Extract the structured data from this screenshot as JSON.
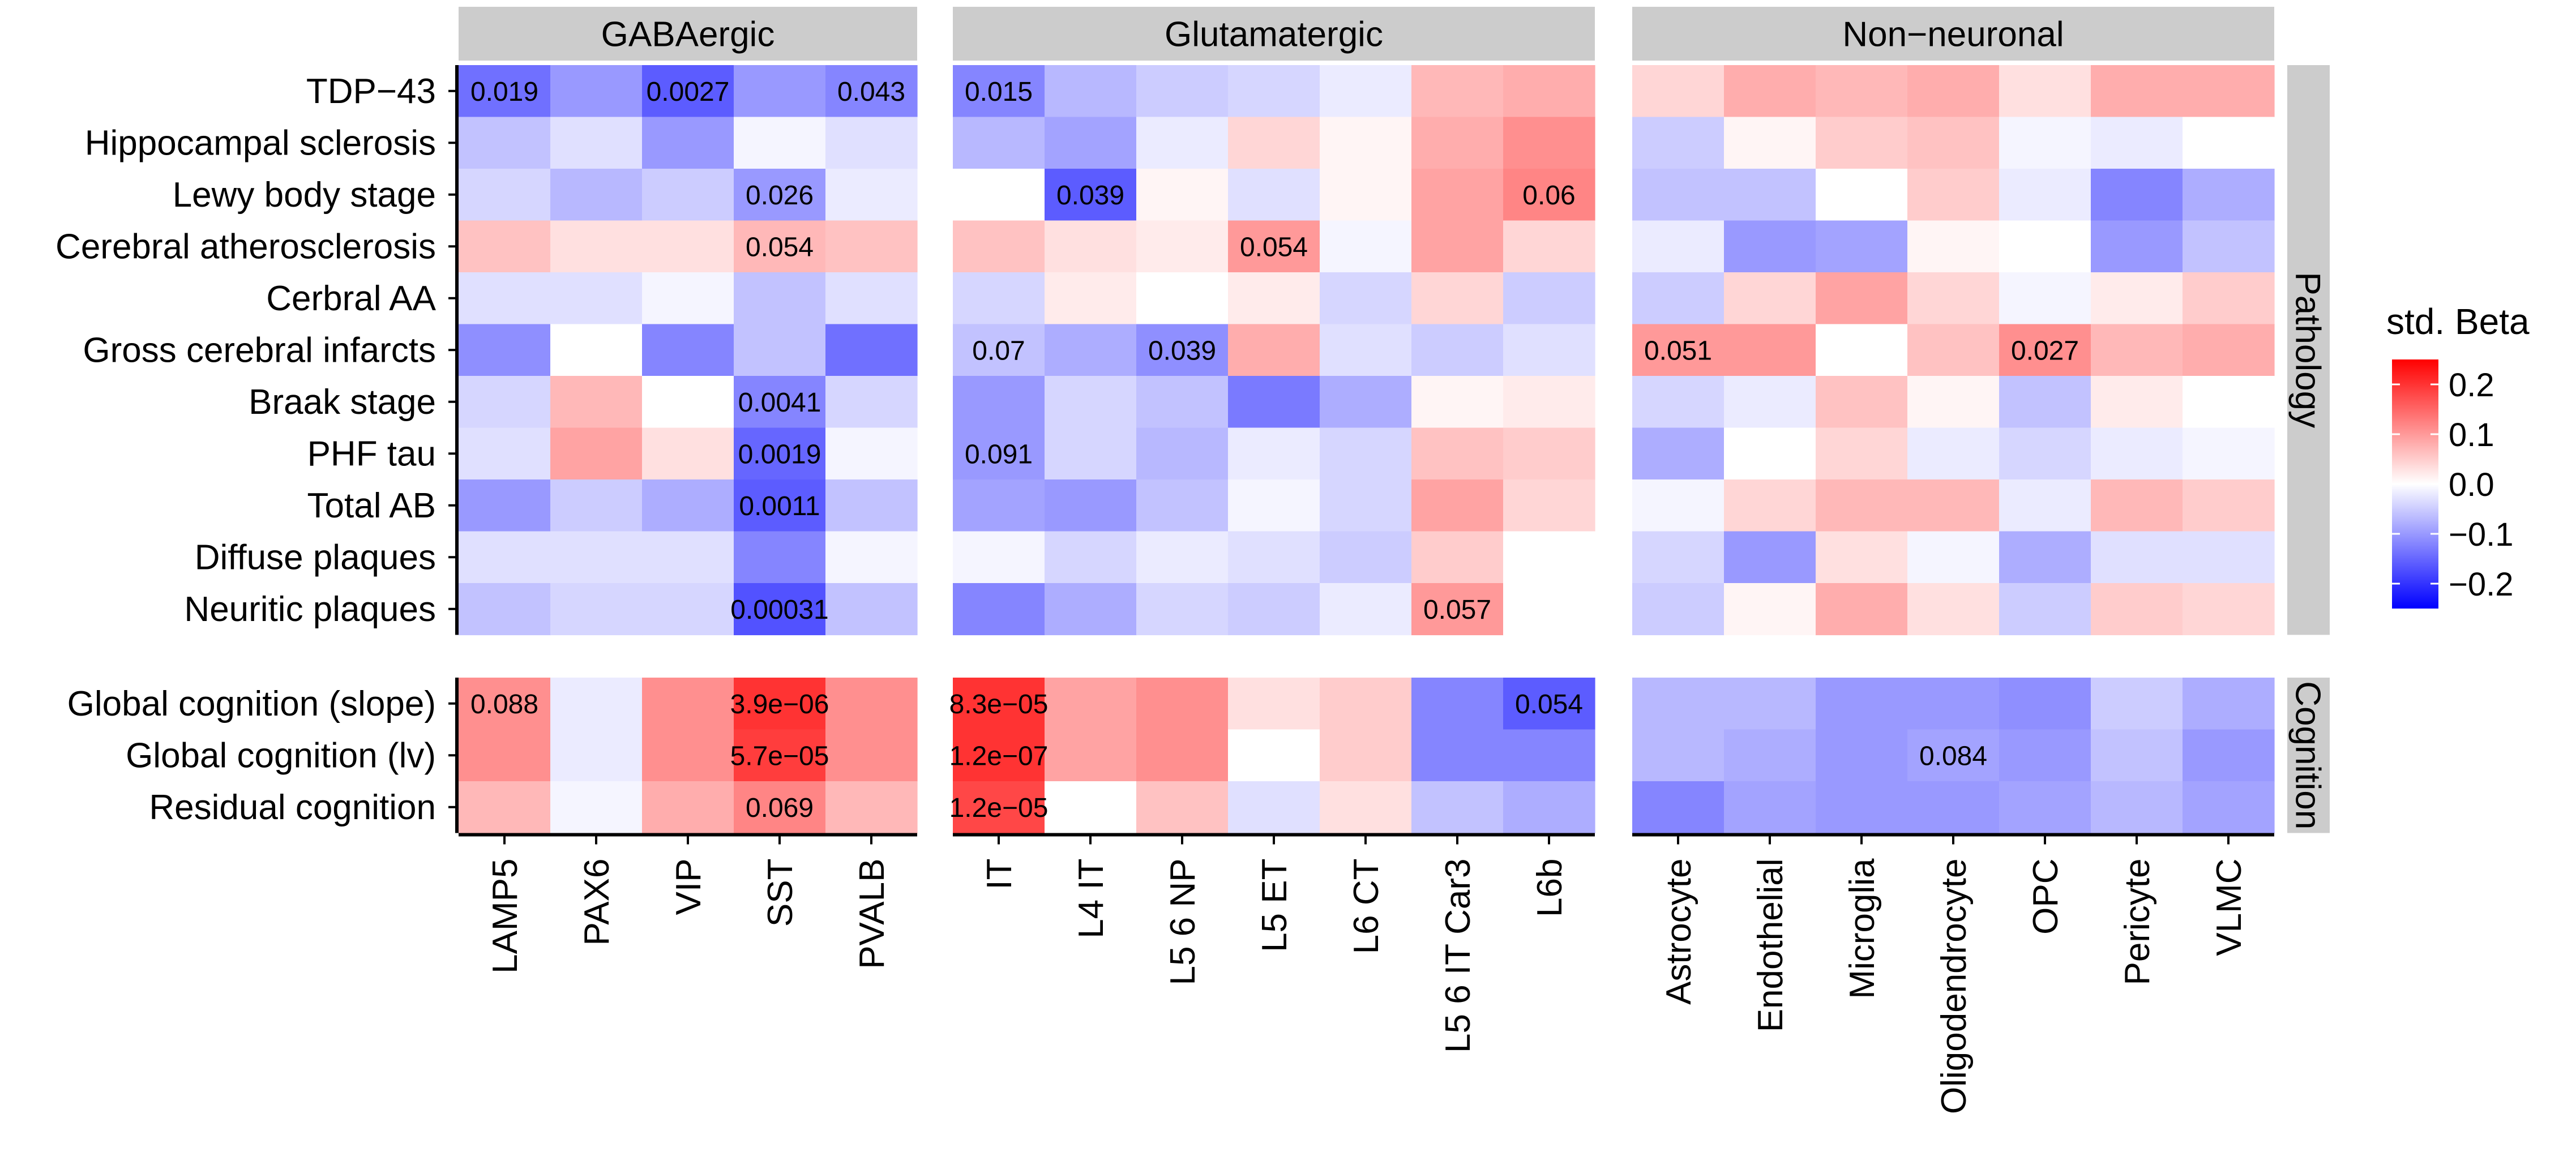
{
  "colors": {
    "negative_extreme": "#0000ff",
    "zero": "#ffffff",
    "positive_extreme": "#ff0000",
    "strip": "#cccccc",
    "axis": "#000000"
  },
  "chart_data": {
    "type": "heatmap",
    "title": "",
    "xlabel": "",
    "ylabel": "",
    "color_scale": {
      "min": -0.25,
      "max": 0.25,
      "mid": 0
    },
    "legend": {
      "title": "std. Beta",
      "ticks": [
        0.2,
        0.1,
        0.0,
        -0.1,
        -0.2
      ],
      "tick_labels": [
        "0.2",
        "0.1",
        "0.0",
        "−0.1",
        "−0.2"
      ],
      "position": "right"
    },
    "column_groups": [
      {
        "name": "GABAergic",
        "columns": [
          "LAMP5",
          "PAX6",
          "VIP",
          "SST",
          "PVALB"
        ]
      },
      {
        "name": "Glutamatergic",
        "columns": [
          "IT",
          "L4 IT",
          "L5 6 NP",
          "L5 ET",
          "L6 CT",
          "L5 6 IT Car3",
          "L6b"
        ]
      },
      {
        "name": "Non−neuronal",
        "columns": [
          "Astrocyte",
          "Endothelial",
          "Microglia",
          "Oligodendrocyte",
          "OPC",
          "Pericyte",
          "VLMC"
        ]
      }
    ],
    "row_groups": [
      {
        "name": "Pathology",
        "rows": [
          "TDP−43",
          "Hippocampal sclerosis",
          "Lewy body stage",
          "Cerebral atherosclerosis",
          "Cerbral AA",
          "Gross cerebral infarcts",
          "Braak stage",
          "PHF tau",
          "Total AB",
          "Diffuse plaques",
          "Neuritic plaques"
        ]
      },
      {
        "name": "Cognition",
        "rows": [
          "Global cognition (slope)",
          "Global cognition (lv)",
          "Residual cognition"
        ]
      }
    ],
    "values": [
      [
        [
          [
            -0.14,
            -0.1,
            -0.16,
            -0.1,
            -0.12
          ],
          [
            -0.12,
            -0.07,
            -0.05,
            -0.04,
            -0.02,
            0.07,
            0.08
          ]
        ],
        [
          [
            -0.06,
            -0.03,
            -0.1,
            -0.01,
            -0.03
          ],
          [
            -0.07,
            -0.09,
            -0.02,
            0.04,
            0.01,
            0.08,
            0.11
          ]
        ],
        [
          [
            -0.04,
            -0.07,
            -0.05,
            -0.1,
            -0.02
          ],
          [
            0.0,
            -0.16,
            0.01,
            -0.03,
            0.01,
            0.09,
            0.12
          ]
        ],
        [
          [
            0.06,
            0.03,
            0.03,
            0.07,
            0.06
          ],
          [
            0.06,
            0.03,
            0.02,
            0.1,
            -0.01,
            0.09,
            0.04
          ]
        ],
        [
          [
            -0.03,
            -0.03,
            -0.01,
            -0.06,
            -0.03
          ],
          [
            -0.04,
            0.02,
            0.0,
            0.02,
            -0.04,
            0.04,
            -0.05
          ]
        ],
        [
          [
            -0.11,
            0.0,
            -0.12,
            -0.06,
            -0.14
          ],
          [
            -0.06,
            -0.08,
            -0.11,
            0.08,
            -0.03,
            -0.05,
            -0.03
          ]
        ],
        [
          [
            -0.04,
            0.07,
            0.0,
            -0.12,
            -0.04
          ],
          [
            -0.1,
            -0.04,
            -0.06,
            -0.13,
            -0.08,
            0.01,
            0.02
          ]
        ],
        [
          [
            -0.03,
            0.09,
            0.03,
            -0.15,
            -0.01
          ],
          [
            -0.1,
            -0.04,
            -0.07,
            -0.02,
            -0.04,
            0.06,
            0.05
          ]
        ],
        [
          [
            -0.1,
            -0.05,
            -0.08,
            -0.16,
            -0.06
          ],
          [
            -0.09,
            -0.1,
            -0.06,
            -0.01,
            -0.04,
            0.09,
            0.04
          ]
        ],
        [
          [
            -0.03,
            -0.03,
            -0.03,
            -0.12,
            -0.01
          ],
          [
            -0.01,
            -0.04,
            -0.02,
            -0.03,
            -0.05,
            0.05,
            0.0
          ]
        ],
        [
          [
            -0.06,
            -0.04,
            -0.04,
            -0.17,
            -0.06
          ],
          [
            -0.12,
            -0.08,
            -0.04,
            -0.05,
            -0.02,
            0.1,
            0.0
          ]
        ]
      ],
      [
        [
          [
            0.11,
            -0.02,
            0.11,
            0.2,
            0.11
          ],
          [
            0.2,
            0.09,
            0.11,
            0.03,
            0.05,
            -0.12,
            -0.16
          ]
        ],
        [
          [
            0.11,
            -0.02,
            0.11,
            0.19,
            0.11
          ],
          [
            0.2,
            0.09,
            0.11,
            0.0,
            0.05,
            -0.12,
            -0.12
          ]
        ],
        [
          [
            0.07,
            -0.01,
            0.08,
            0.12,
            0.07
          ],
          [
            0.18,
            0.0,
            0.06,
            -0.03,
            0.03,
            -0.06,
            -0.08
          ]
        ]
      ]
    ],
    "nonneuronal_values": [
      [
        [
          0.04,
          0.08,
          0.07,
          0.08,
          0.03,
          0.08,
          0.08
        ]
      ],
      [
        [
          -0.05,
          0.01,
          0.05,
          0.06,
          -0.01,
          -0.02,
          0.0
        ]
      ],
      [
        [
          -0.06,
          -0.06,
          0.0,
          0.05,
          -0.02,
          -0.12,
          -0.08
        ]
      ],
      [
        [
          -0.02,
          -0.1,
          -0.09,
          0.01,
          0.0,
          -0.1,
          -0.06
        ]
      ],
      [
        [
          -0.05,
          0.04,
          0.09,
          0.04,
          -0.01,
          0.02,
          0.05
        ]
      ],
      [
        [
          0.1,
          0.1,
          0.0,
          0.06,
          0.11,
          0.07,
          0.08
        ]
      ],
      [
        [
          -0.04,
          -0.02,
          0.06,
          0.01,
          -0.06,
          0.02,
          0.0
        ]
      ],
      [
        [
          -0.08,
          0.0,
          0.04,
          -0.02,
          -0.04,
          -0.02,
          -0.01
        ]
      ],
      [
        [
          -0.01,
          0.04,
          0.07,
          0.07,
          -0.02,
          0.07,
          0.05
        ]
      ],
      [
        [
          -0.04,
          -0.1,
          0.03,
          -0.01,
          -0.08,
          -0.03,
          -0.03
        ]
      ],
      [
        [
          -0.05,
          0.01,
          0.08,
          0.03,
          -0.05,
          0.05,
          0.04
        ]
      ],
      [
        [
          -0.07,
          -0.07,
          -0.1,
          -0.1,
          -0.11,
          -0.05,
          -0.08
        ]
      ],
      [
        [
          -0.07,
          -0.08,
          -0.1,
          -0.09,
          -0.1,
          -0.06,
          -0.1
        ]
      ],
      [
        [
          -0.12,
          -0.09,
          -0.1,
          -0.1,
          -0.09,
          -0.07,
          -0.09
        ]
      ]
    ],
    "annotations": [
      {
        "row": "TDP−43",
        "column": "LAMP5",
        "text": "0.019"
      },
      {
        "row": "TDP−43",
        "column": "VIP",
        "text": "0.0027"
      },
      {
        "row": "TDP−43",
        "column": "PVALB",
        "text": "0.043"
      },
      {
        "row": "TDP−43",
        "column": "IT",
        "text": "0.015"
      },
      {
        "row": "Lewy body stage",
        "column": "SST",
        "text": "0.026"
      },
      {
        "row": "Lewy body stage",
        "column": "L4 IT",
        "text": "0.039"
      },
      {
        "row": "Lewy body stage",
        "column": "L6b",
        "text": "0.06"
      },
      {
        "row": "Cerebral atherosclerosis",
        "column": "SST",
        "text": "0.054"
      },
      {
        "row": "Cerebral atherosclerosis",
        "column": "L5 ET",
        "text": "0.054"
      },
      {
        "row": "Gross cerebral infarcts",
        "column": "IT",
        "text": "0.07"
      },
      {
        "row": "Gross cerebral infarcts",
        "column": "L5 6 NP",
        "text": "0.039"
      },
      {
        "row": "Gross cerebral infarcts",
        "column": "Astrocyte",
        "text": "0.051"
      },
      {
        "row": "Gross cerebral infarcts",
        "column": "OPC",
        "text": "0.027"
      },
      {
        "row": "Braak stage",
        "column": "SST",
        "text": "0.0041"
      },
      {
        "row": "PHF tau",
        "column": "SST",
        "text": "0.0019"
      },
      {
        "row": "PHF tau",
        "column": "IT",
        "text": "0.091"
      },
      {
        "row": "Total AB",
        "column": "SST",
        "text": "0.0011"
      },
      {
        "row": "Neuritic plaques",
        "column": "SST",
        "text": "0.00031"
      },
      {
        "row": "Neuritic plaques",
        "column": "L5 6 IT Car3",
        "text": "0.057"
      },
      {
        "row": "Global cognition (slope)",
        "column": "LAMP5",
        "text": "0.088"
      },
      {
        "row": "Global cognition (slope)",
        "column": "SST",
        "text": "3.9e−06"
      },
      {
        "row": "Global cognition (slope)",
        "column": "IT",
        "text": "8.3e−05"
      },
      {
        "row": "Global cognition (slope)",
        "column": "L6b",
        "text": "0.054"
      },
      {
        "row": "Global cognition (lv)",
        "column": "SST",
        "text": "5.7e−05"
      },
      {
        "row": "Global cognition (lv)",
        "column": "IT",
        "text": "1.2e−07"
      },
      {
        "row": "Global cognition (lv)",
        "column": "Oligodendrocyte",
        "text": "0.084"
      },
      {
        "row": "Residual cognition",
        "column": "SST",
        "text": "0.069"
      },
      {
        "row": "Residual cognition",
        "column": "IT",
        "text": "1.2e−05"
      }
    ]
  }
}
